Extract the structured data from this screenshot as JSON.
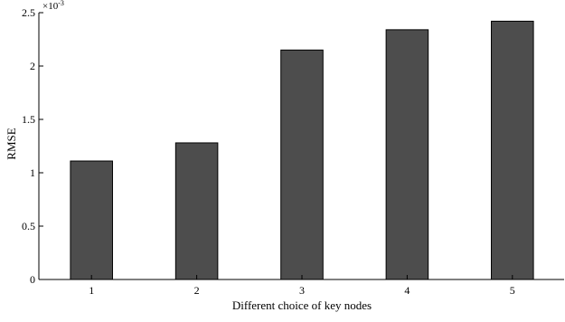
{
  "chart_data": {
    "type": "bar",
    "title": "",
    "xlabel": "Different choice of key nodes",
    "ylabel": "RMSE",
    "categories": [
      "1",
      "2",
      "3",
      "4",
      "5"
    ],
    "values": [
      1.11,
      1.28,
      2.15,
      2.34,
      2.42
    ],
    "ylim": [
      0,
      2.5
    ],
    "yticks": [
      0,
      0.5,
      1,
      1.5,
      2,
      2.5
    ],
    "ytick_labels": [
      "0",
      "0.5",
      "1",
      "1.5",
      "2",
      "2.5"
    ],
    "y_multiplier_base": "×10",
    "y_multiplier_exponent": "-3",
    "grid": false,
    "legend": "none",
    "colors": {
      "bar_fill": "#4d4d4d",
      "bar_stroke": "#000000",
      "axis": "#000000"
    }
  }
}
